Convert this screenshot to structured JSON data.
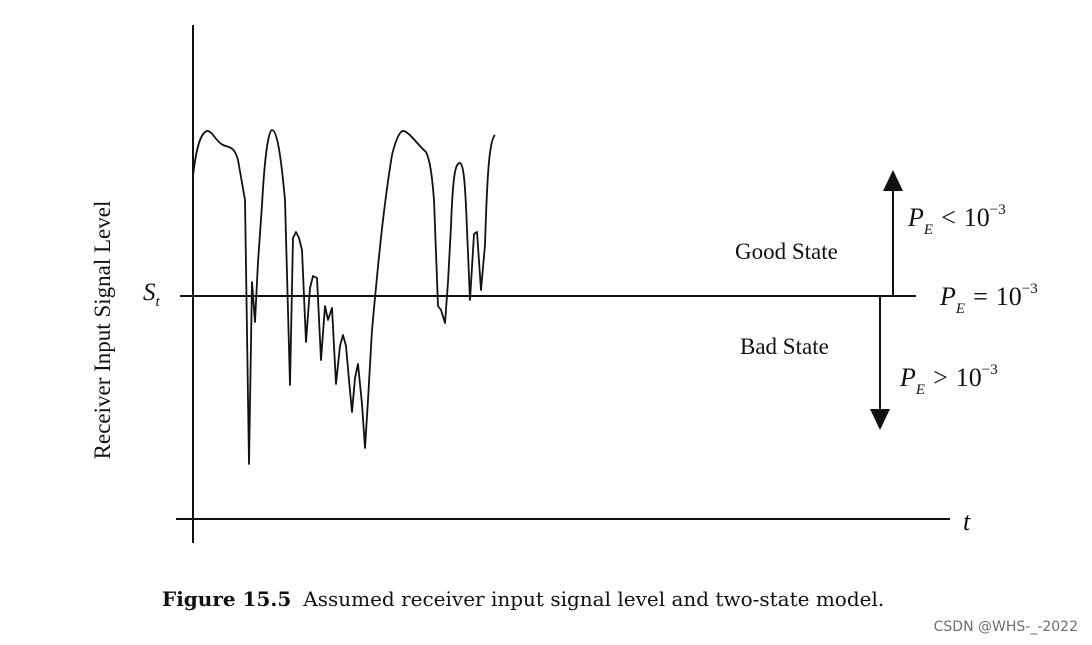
{
  "figure": {
    "y_axis_label": "Receiver Input Signal Level",
    "x_axis_label": "t",
    "threshold_label": {
      "base": "S",
      "sub": "t"
    },
    "good_state_label": "Good State",
    "bad_state_label": "Bad State",
    "upper_condition": {
      "p": "P",
      "sub": "E",
      "op": "<",
      "base": "10",
      "exp": "−3"
    },
    "threshold_condition": {
      "p": "P",
      "sub": "E",
      "op": "=",
      "base": "10",
      "exp": "−3"
    },
    "lower_condition": {
      "p": "P",
      "sub": "E",
      "op": ">",
      "base": "10",
      "exp": "−3"
    }
  },
  "caption": {
    "number": "Figure 15.5",
    "text": "Assumed receiver input signal level and two-state model."
  },
  "watermark": "CSDN @WHS-_-2022",
  "colors": {
    "ink": "#111111",
    "watermark": "#6e6e6e"
  },
  "icons": {
    "up_arrow": "arrow-up-icon",
    "down_arrow": "arrow-down-icon"
  }
}
